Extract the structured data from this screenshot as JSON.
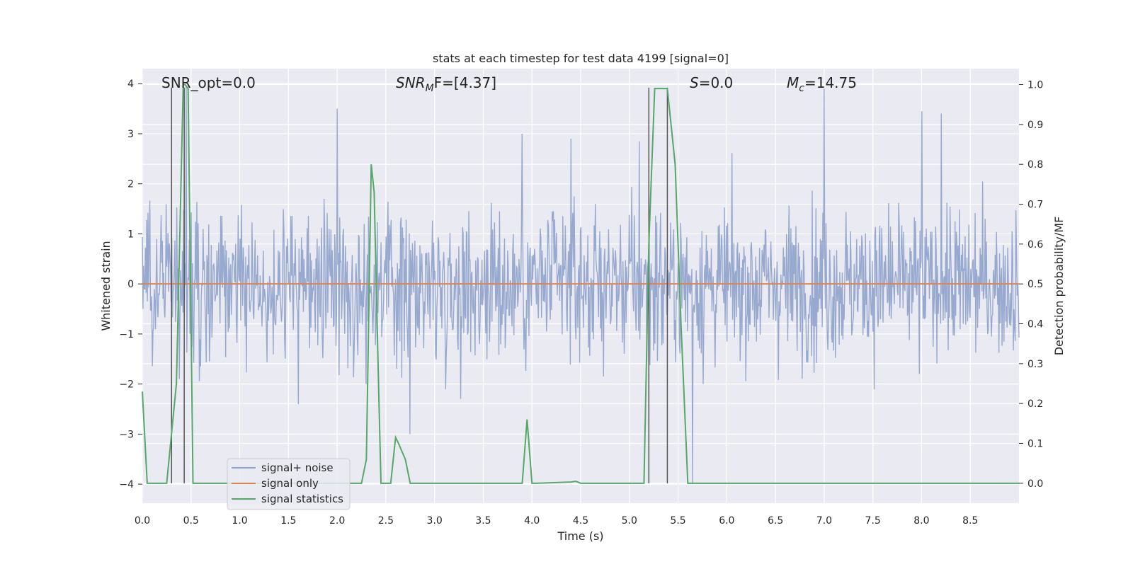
{
  "chart_data": {
    "type": "line",
    "title": "stats at each timestep for test data 4199 [signal=0]",
    "xlabel": "Time (s)",
    "ylabel_left": "Whitened strain",
    "ylabel_right": "Detection probability/MF",
    "xlim": [
      0.0,
      9.0
    ],
    "ylim_left": [
      -4.38,
      4.3
    ],
    "ylim_right": [
      -0.05,
      1.04
    ],
    "grid": true,
    "legend_position": "lower-left",
    "x_ticks": [
      0.0,
      0.5,
      1.0,
      1.5,
      2.0,
      2.5,
      3.0,
      3.5,
      4.0,
      4.5,
      5.0,
      5.5,
      6.0,
      6.5,
      7.0,
      7.5,
      8.0,
      8.5
    ],
    "x_tick_labels": [
      "0.0",
      "0.5",
      "1.0",
      "1.5",
      "2.0",
      "2.5",
      "3.0",
      "3.5",
      "4.0",
      "4.5",
      "5.0",
      "5.5",
      "6.0",
      "6.5",
      "7.0",
      "7.5",
      "8.0",
      "8.5"
    ],
    "y_ticks_left": [
      4,
      3,
      2,
      1,
      0,
      -1,
      -2,
      -3,
      -4
    ],
    "y_tick_labels_left": [
      "4",
      "3",
      "2",
      "1",
      "0",
      "−1",
      "−2",
      "−3",
      "−4"
    ],
    "y_ticks_right": [
      1.0,
      0.9,
      0.8,
      0.7,
      0.6,
      0.5,
      0.4,
      0.3,
      0.2,
      0.1,
      0.0
    ],
    "y_tick_labels_right": [
      "1.0",
      "0.9",
      "0.8",
      "0.7",
      "0.6",
      "0.5",
      "0.4",
      "0.3",
      "0.2",
      "0.1",
      "0.0"
    ],
    "annotations": {
      "snr_opt": "SNR_opt=0.0",
      "snr_mf_main": "SNR",
      "snr_mf_sub": "M",
      "snr_mf_tail": "F=[4.37]",
      "s_main": "S",
      "s_tail": "=0.0",
      "mc_main": "M",
      "mc_sub": "c",
      "mc_tail": "=14.75"
    },
    "series": [
      {
        "name": "signal+ noise",
        "color": "#8fa2cb",
        "description": "whitened strain noise, approx. Gaussian, range -4 to 3.9",
        "peaks": [
          [
            0.45,
            3.95
          ],
          [
            2.0,
            3.5
          ],
          [
            7.0,
            3.9
          ],
          [
            8.0,
            3.45
          ],
          [
            8.2,
            3.4
          ],
          [
            3.9,
            3.0
          ],
          [
            5.1,
            2.85
          ],
          [
            2.75,
            -3.0
          ],
          [
            5.65,
            -4.0
          ],
          [
            1.6,
            -2.4
          ],
          [
            4.4,
            2.9
          ]
        ]
      },
      {
        "name": "signal only",
        "color": "#dd8452",
        "axis": "left",
        "x": [
          0.0,
          9.0
        ],
        "y": [
          0.0,
          0.0
        ]
      },
      {
        "name": "signal statistics",
        "color": "#55a868",
        "axis": "right",
        "x": [
          0.0,
          0.05,
          0.25,
          0.35,
          0.42,
          0.44,
          0.47,
          0.52,
          0.55,
          2.25,
          2.3,
          2.35,
          2.38,
          2.42,
          2.45,
          2.5,
          2.55,
          2.6,
          2.63,
          2.7,
          2.75,
          3.9,
          3.95,
          4.0,
          4.05,
          4.4,
          4.45,
          4.5,
          5.15,
          5.2,
          5.26,
          5.39,
          5.47,
          5.53,
          5.6,
          9.0
        ],
        "y": [
          0.23,
          0.0,
          0.0,
          0.25,
          1.0,
          1.0,
          0.99,
          0.0,
          0.0,
          0.0,
          0.06,
          0.8,
          0.73,
          0.3,
          0.0,
          0.0,
          0.0,
          0.115,
          0.1,
          0.06,
          0.0,
          0.0,
          0.16,
          0.0,
          0.0,
          0.003,
          0.005,
          0.0,
          0.0,
          0.6,
          0.99,
          0.99,
          0.8,
          0.4,
          0.0,
          0.0
        ]
      }
    ],
    "vertical_lines": [
      0.3,
      0.43,
      5.2,
      5.39
    ],
    "vertical_line_color": "#555555"
  }
}
